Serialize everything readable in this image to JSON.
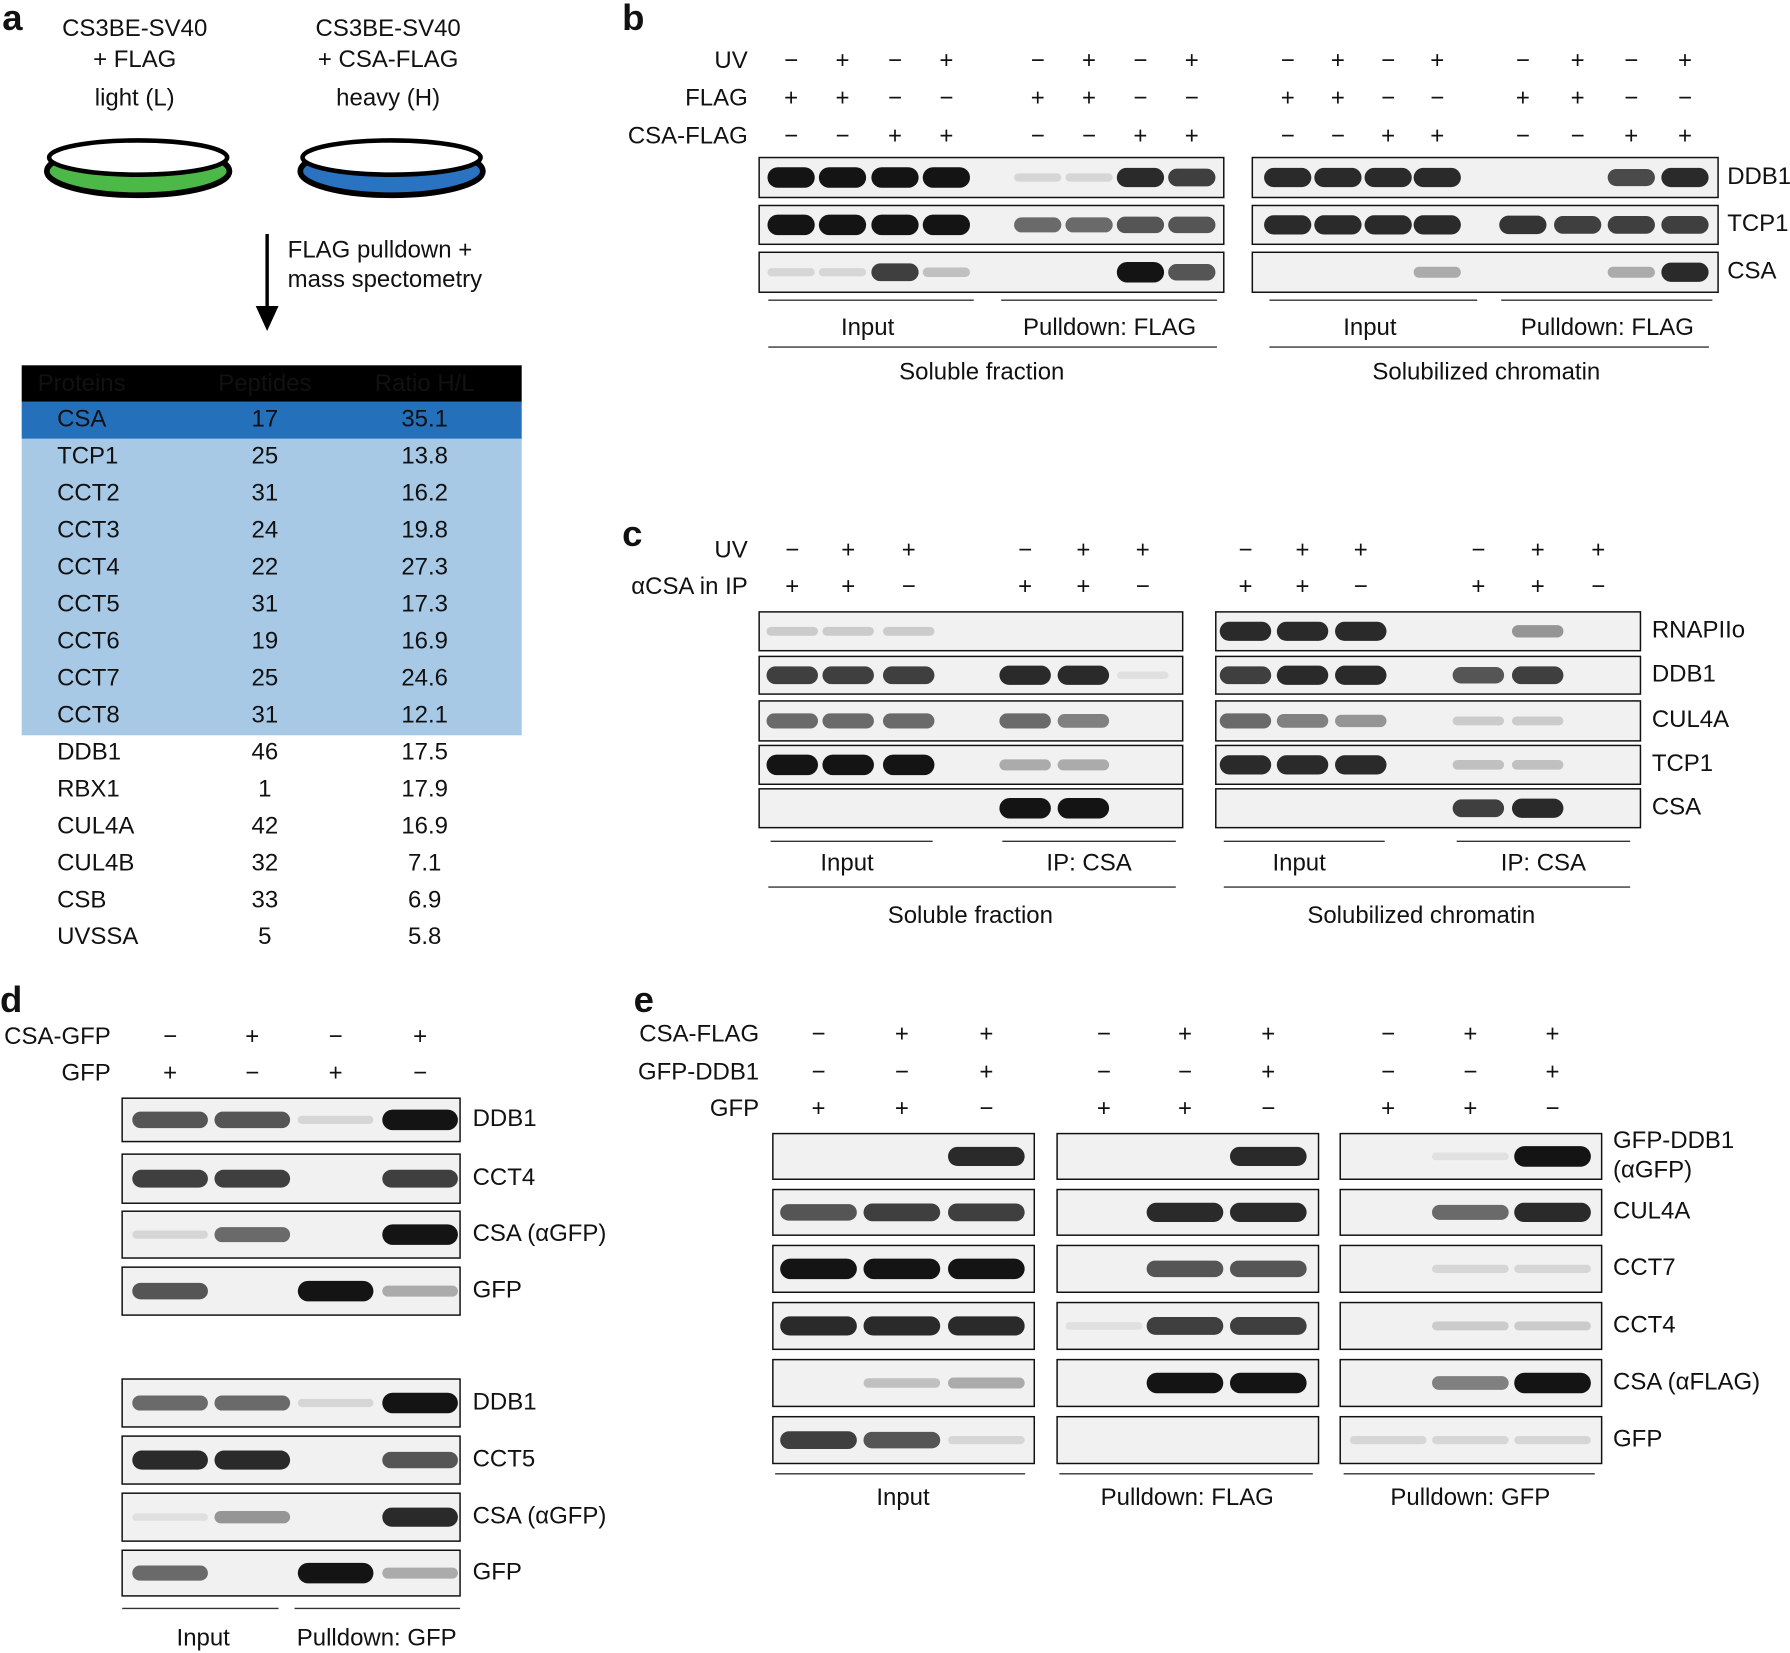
{
  "panel_a": {
    "letter": "a",
    "light": [
      "CS3BE-SV40",
      "+ FLAG",
      "light (L)"
    ],
    "heavy": [
      "CS3BE-SV40",
      "+ CSA-FLAG",
      "heavy (H)"
    ],
    "arrow_text": [
      "FLAG pulldown +",
      "mass spectometry"
    ],
    "table": {
      "header": [
        "Proteins",
        "Peptides",
        "Ratio H/L"
      ],
      "rows": [
        [
          "CSA",
          17,
          35.1
        ],
        [
          "TCP1",
          25,
          13.8
        ],
        [
          "CCT2",
          31,
          16.2
        ],
        [
          "CCT3",
          24,
          19.8
        ],
        [
          "CCT4",
          22,
          27.3
        ],
        [
          "CCT5",
          31,
          17.3
        ],
        [
          "CCT6",
          19,
          16.9
        ],
        [
          "CCT7",
          25,
          24.6
        ],
        [
          "CCT8",
          31,
          12.1
        ],
        [
          "DDB1",
          46,
          17.5
        ],
        [
          "RBX1",
          1,
          17.9
        ],
        [
          "CUL4A",
          42,
          16.9
        ],
        [
          "CUL4B",
          32,
          7.1
        ],
        [
          "CSB",
          33,
          6.9
        ],
        [
          "UVSSA",
          5,
          5.8
        ]
      ]
    }
  },
  "panel_b": {
    "letter": "b",
    "conditions": [
      {
        "label": "UV",
        "signs": [
          "−",
          "+",
          "−",
          "+",
          "−",
          "+",
          "−",
          "+",
          "−",
          "+",
          "−",
          "+",
          "−",
          "+",
          "−",
          "+"
        ]
      },
      {
        "label": "FLAG",
        "signs": [
          "+",
          "+",
          "−",
          "−",
          "+",
          "+",
          "−",
          "−",
          "+",
          "+",
          "−",
          "−",
          "+",
          "+",
          "−",
          "−"
        ]
      },
      {
        "label": "CSA-FLAG",
        "signs": [
          "−",
          "−",
          "+",
          "+",
          "−",
          "−",
          "+",
          "+",
          "−",
          "−",
          "+",
          "+",
          "−",
          "−",
          "+",
          "+"
        ]
      }
    ],
    "blots": [
      "DDB1",
      "TCP1",
      "CSA"
    ],
    "groups": [
      "Input",
      "Pulldown: FLAG",
      "Input",
      "Pulldown: FLAG"
    ],
    "fractions": [
      "Soluble fraction",
      "Solubilized chromatin"
    ]
  },
  "panel_c": {
    "letter": "c",
    "conditions": [
      {
        "label": "UV",
        "signs": [
          "−",
          "+",
          "+",
          "−",
          "+",
          "+",
          "−",
          "+",
          "+",
          "−",
          "+",
          "+"
        ]
      },
      {
        "label": "αCSA in IP",
        "signs": [
          "+",
          "+",
          "−",
          "+",
          "+",
          "−",
          "+",
          "+",
          "−",
          "+",
          "+",
          "−"
        ]
      }
    ],
    "blots": [
      "RNAPIIo",
      "DDB1",
      "CUL4A",
      "TCP1",
      "CSA"
    ],
    "groups": [
      "Input",
      "IP: CSA",
      "Input",
      "IP: CSA"
    ],
    "fractions": [
      "Soluble fraction",
      "Solubilized chromatin"
    ]
  },
  "panel_d": {
    "letter": "d",
    "conditions": [
      {
        "label": "CSA-GFP",
        "signs": [
          "−",
          "+",
          "−",
          "+"
        ]
      },
      {
        "label": "GFP",
        "signs": [
          "+",
          "−",
          "+",
          "−"
        ]
      }
    ],
    "blots": [
      "DDB1",
      "CCT4",
      "CSA (αGFP)",
      "GFP",
      "DDB1",
      "CCT5",
      "CSA (αGFP)",
      "GFP"
    ],
    "groups": [
      "Input",
      "Pulldown: GFP"
    ]
  },
  "panel_e": {
    "letter": "e",
    "conditions": [
      {
        "label": "CSA-FLAG",
        "signs": [
          "−",
          "+",
          "+",
          "−",
          "+",
          "+",
          "−",
          "+",
          "+"
        ]
      },
      {
        "label": "GFP-DDB1",
        "signs": [
          "−",
          "−",
          "+",
          "−",
          "−",
          "+",
          "−",
          "−",
          "+"
        ]
      },
      {
        "label": "GFP",
        "signs": [
          "+",
          "+",
          "−",
          "+",
          "+",
          "−",
          "+",
          "+",
          "−"
        ]
      }
    ],
    "blots": [
      [
        "GFP-DDB1",
        "(αGFP)"
      ],
      "CUL4A",
      "CCT7",
      "CCT4",
      "CSA (αFLAG)",
      "GFP"
    ],
    "groups": [
      "Input",
      "Pulldown: FLAG",
      "Pulldown: GFP"
    ]
  }
}
